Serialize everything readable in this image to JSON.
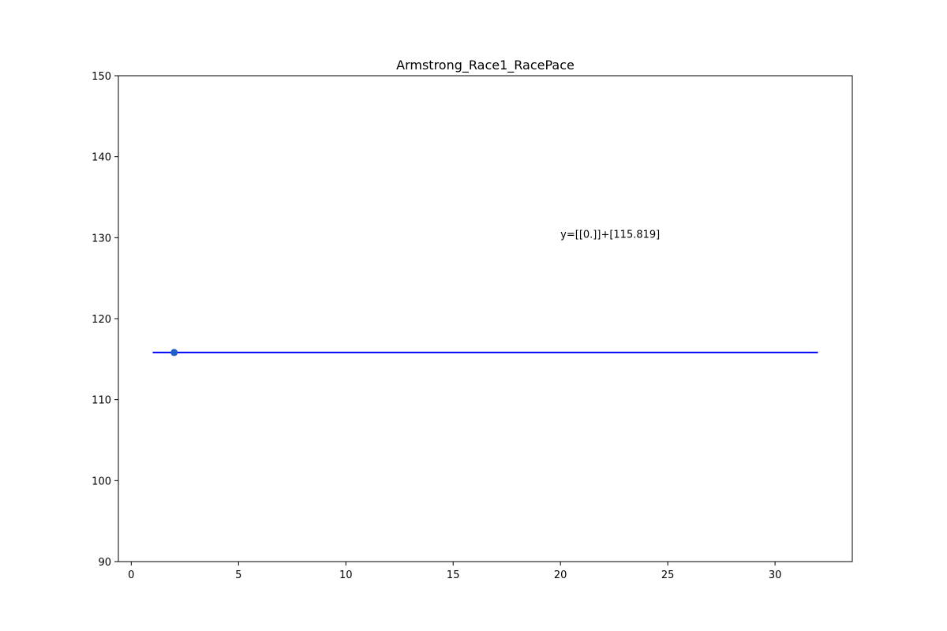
{
  "chart_data": {
    "type": "line",
    "title": "Armstrong_Race1_RacePace",
    "xlabel": "",
    "ylabel": "",
    "xlim": [
      -0.6,
      33.6
    ],
    "ylim": [
      90,
      150
    ],
    "x_ticks": [
      0,
      5,
      10,
      15,
      20,
      25,
      30
    ],
    "y_ticks": [
      90,
      100,
      110,
      120,
      130,
      140,
      150
    ],
    "grid": false,
    "series": [
      {
        "kind": "line",
        "color": "#0000ff",
        "x": [
          1,
          32
        ],
        "y": [
          115.819,
          115.819
        ]
      },
      {
        "kind": "scatter",
        "color": "#1f5fc8",
        "x": [
          2
        ],
        "y": [
          115.819
        ]
      }
    ],
    "annotations": [
      {
        "text": "y=[[0.]]+[115.819]",
        "x": 20.0,
        "y": 130
      }
    ]
  }
}
